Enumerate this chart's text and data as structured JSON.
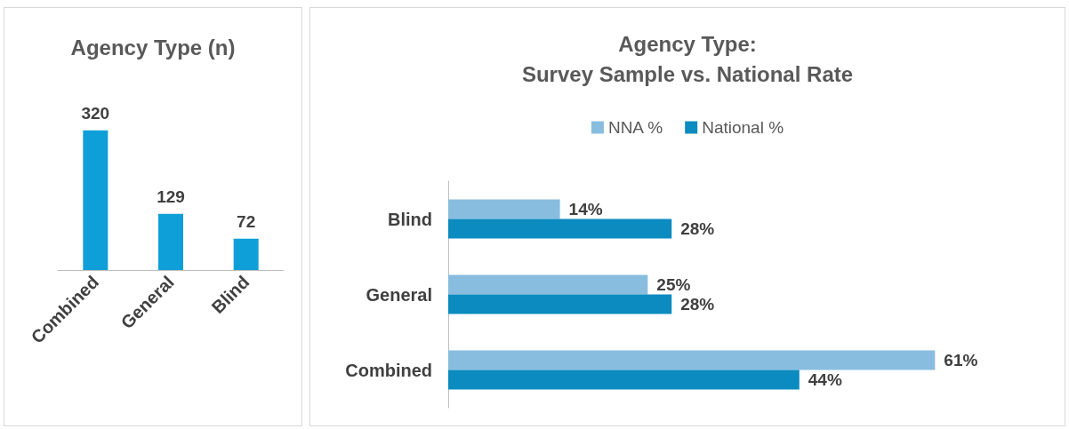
{
  "chart_data": [
    {
      "type": "bar",
      "title": "Agency Type (n)",
      "categories": [
        "Combined",
        "General",
        "Blind"
      ],
      "values": [
        320,
        129,
        72
      ],
      "color": "#0f9fd8",
      "data_labels": true,
      "legend": false
    },
    {
      "type": "bar",
      "orientation": "horizontal",
      "title": "Agency Type:\nSurvey Sample vs. National Rate",
      "categories": [
        "Blind",
        "General",
        "Combined"
      ],
      "legend": "top",
      "series": [
        {
          "name": "NNA %",
          "color": "#88bde0",
          "values": [
            14,
            25,
            61
          ],
          "value_labels": [
            "14%",
            "25%",
            "61%"
          ]
        },
        {
          "name": "National %",
          "color": "#0b8bbf",
          "values": [
            28,
            28,
            44
          ],
          "value_labels": [
            "28%",
            "28%",
            "44%"
          ]
        }
      ]
    }
  ]
}
